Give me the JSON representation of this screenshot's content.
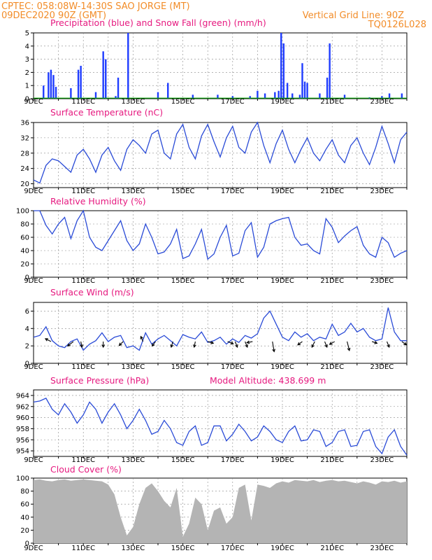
{
  "header": {
    "station": "CPTEC:   058:08W-14:30S  SAO JORGE (MT)",
    "run": "09DEC2020 90Z (GMT)",
    "grid_note": "Vertical Grid Line: 90Z",
    "code": "TQ0126L028"
  },
  "colors": {
    "header": "#f28c28",
    "title": "#e6197f",
    "precip": "#1f3cff",
    "snow": "#00a000",
    "line": "#2a4bd7",
    "wind_arrow": "#000000",
    "cloud": "#b4b4b4",
    "grid": "#888888"
  },
  "x_axis": {
    "labels": [
      "9DEC",
      "11DEC",
      "13DEC",
      "15DEC",
      "17DEC",
      "19DEC",
      "21DEC",
      "23DEC"
    ],
    "day_start": 9,
    "day_end": 24
  },
  "panels": [
    {
      "id": "precip",
      "title": "Precipitation (blue) and Snow Fall (green) (mm/h)",
      "yticks": [
        "0",
        "1",
        "2",
        "3",
        "4",
        "5"
      ]
    },
    {
      "id": "temp",
      "title": "Surface Temperature (nC)",
      "yticks": [
        "20",
        "24",
        "28",
        "32",
        "36"
      ]
    },
    {
      "id": "rh",
      "title": "Relative Humidity (%)",
      "yticks": [
        "0",
        "20",
        "40",
        "60",
        "80",
        "100"
      ]
    },
    {
      "id": "wind",
      "title": "Surface Wind (m/s)",
      "yticks": [
        "0",
        "2",
        "4",
        "6"
      ]
    },
    {
      "id": "press",
      "title": "Surface Pressure (hPa)",
      "extra": "Model Altitude: 438.699 m",
      "yticks": [
        "954",
        "956",
        "958",
        "960",
        "962",
        "964"
      ]
    },
    {
      "id": "cloud",
      "title": "Cloud Cover (%)",
      "yticks": [
        "0",
        "20",
        "40",
        "60",
        "80",
        "100"
      ]
    }
  ],
  "chart_data": [
    {
      "type": "bar",
      "title": "Precipitation (blue) and Snow Fall (green) (mm/h)",
      "ylim": [
        0,
        5
      ],
      "series": [
        {
          "name": "Precipitation",
          "color": "#1f3cff",
          "points": [
            [
              9.4,
              1.0
            ],
            [
              9.6,
              2.0
            ],
            [
              9.7,
              2.2
            ],
            [
              9.8,
              1.8
            ],
            [
              9.9,
              0.9
            ],
            [
              10.5,
              0.8
            ],
            [
              10.8,
              2.2
            ],
            [
              10.9,
              2.5
            ],
            [
              11.5,
              0.5
            ],
            [
              11.8,
              3.6
            ],
            [
              11.9,
              3.0
            ],
            [
              12.3,
              0.2
            ],
            [
              12.4,
              1.6
            ],
            [
              12.8,
              5.0
            ],
            [
              14.0,
              0.5
            ],
            [
              14.4,
              1.2
            ],
            [
              15.4,
              0.3
            ],
            [
              16.4,
              0.3
            ],
            [
              17.0,
              0.2
            ],
            [
              17.7,
              0.2
            ],
            [
              18.0,
              0.6
            ],
            [
              18.3,
              0.4
            ],
            [
              18.7,
              0.5
            ],
            [
              18.85,
              0.6
            ],
            [
              18.95,
              5.0
            ],
            [
              19.05,
              4.2
            ],
            [
              19.2,
              1.2
            ],
            [
              19.4,
              0.4
            ],
            [
              19.7,
              0.3
            ],
            [
              19.8,
              2.7
            ],
            [
              19.9,
              1.3
            ],
            [
              20.0,
              1.2
            ],
            [
              20.5,
              0.4
            ],
            [
              20.8,
              1.6
            ],
            [
              20.9,
              4.2
            ],
            [
              21.5,
              0.3
            ],
            [
              22.5,
              0.1
            ],
            [
              23.0,
              0.2
            ],
            [
              23.3,
              0.4
            ],
            [
              23.8,
              0.4
            ]
          ]
        },
        {
          "name": "Snow Fall",
          "color": "#00a000",
          "points": []
        }
      ]
    },
    {
      "type": "line",
      "title": "Surface Temperature (nC)",
      "ylim": [
        19,
        36
      ],
      "x": [
        9.0,
        9.25,
        9.5,
        9.75,
        10.0,
        10.25,
        10.5,
        10.75,
        11.0,
        11.25,
        11.5,
        11.75,
        12.0,
        12.25,
        12.5,
        12.75,
        13.0,
        13.25,
        13.5,
        13.75,
        14.0,
        14.25,
        14.5,
        14.75,
        15.0,
        15.25,
        15.5,
        15.75,
        16.0,
        16.25,
        16.5,
        16.75,
        17.0,
        17.25,
        17.5,
        17.75,
        18.0,
        18.25,
        18.5,
        18.75,
        19.0,
        19.25,
        19.5,
        19.75,
        20.0,
        20.25,
        20.5,
        20.75,
        21.0,
        21.25,
        21.5,
        21.75,
        22.0,
        22.25,
        22.5,
        22.75,
        23.0,
        23.25,
        23.5,
        23.75,
        24.0
      ],
      "values": [
        21.0,
        20.2,
        24.8,
        26.5,
        26.0,
        24.5,
        23.0,
        27.5,
        29.0,
        26.5,
        23.0,
        27.5,
        29.5,
        26.0,
        23.5,
        29.0,
        31.5,
        30.0,
        28.0,
        33.0,
        34.0,
        28.0,
        26.5,
        33.0,
        35.5,
        29.5,
        26.5,
        32.5,
        35.5,
        31.0,
        27.0,
        32.0,
        35.0,
        29.5,
        28.0,
        33.5,
        36.0,
        30.0,
        25.5,
        30.5,
        34.0,
        29.0,
        25.5,
        29.0,
        32.0,
        28.0,
        26.0,
        29.0,
        31.5,
        27.5,
        25.5,
        30.0,
        32.0,
        28.0,
        25.0,
        29.5,
        35.0,
        30.5,
        25.5,
        31.5,
        33.5
      ]
    },
    {
      "type": "line",
      "title": "Relative Humidity (%)",
      "ylim": [
        0,
        100
      ],
      "x": [
        9.0,
        9.25,
        9.5,
        9.75,
        10.0,
        10.25,
        10.5,
        10.75,
        11.0,
        11.25,
        11.5,
        11.75,
        12.0,
        12.25,
        12.5,
        12.75,
        13.0,
        13.25,
        13.5,
        13.75,
        14.0,
        14.25,
        14.5,
        14.75,
        15.0,
        15.25,
        15.5,
        15.75,
        16.0,
        16.25,
        16.5,
        16.75,
        17.0,
        17.25,
        17.5,
        17.75,
        18.0,
        18.25,
        18.5,
        18.75,
        19.0,
        19.25,
        19.5,
        19.75,
        20.0,
        20.25,
        20.5,
        20.75,
        21.0,
        21.25,
        21.5,
        21.75,
        22.0,
        22.25,
        22.5,
        22.75,
        23.0,
        23.25,
        23.5,
        23.75,
        24.0
      ],
      "values": [
        100,
        100,
        78,
        65,
        80,
        90,
        58,
        85,
        100,
        60,
        45,
        40,
        55,
        70,
        85,
        55,
        40,
        50,
        80,
        60,
        35,
        38,
        50,
        72,
        28,
        32,
        50,
        72,
        27,
        35,
        60,
        78,
        32,
        36,
        70,
        82,
        30,
        45,
        80,
        85,
        88,
        90,
        60,
        48,
        50,
        40,
        35,
        88,
        75,
        52,
        62,
        70,
        76,
        48,
        35,
        30,
        60,
        52,
        30,
        36,
        40
      ]
    },
    {
      "type": "line",
      "title": "Surface Wind (m/s)",
      "ylim": [
        0,
        7
      ],
      "x": [
        9.0,
        9.25,
        9.5,
        9.75,
        10.0,
        10.25,
        10.5,
        10.75,
        11.0,
        11.25,
        11.5,
        11.75,
        12.0,
        12.25,
        12.5,
        12.75,
        13.0,
        13.25,
        13.5,
        13.75,
        14.0,
        14.25,
        14.5,
        14.75,
        15.0,
        15.25,
        15.5,
        15.75,
        16.0,
        16.25,
        16.5,
        16.75,
        17.0,
        17.25,
        17.5,
        17.75,
        18.0,
        18.25,
        18.5,
        18.75,
        19.0,
        19.25,
        19.5,
        19.75,
        20.0,
        20.25,
        20.5,
        20.75,
        21.0,
        21.25,
        21.5,
        21.75,
        22.0,
        22.25,
        22.5,
        22.75,
        23.0,
        23.25,
        23.5,
        23.75,
        24.0
      ],
      "values": [
        3.0,
        3.2,
        4.2,
        2.6,
        2.0,
        1.8,
        2.5,
        2.8,
        1.5,
        2.2,
        2.6,
        3.5,
        2.5,
        3.0,
        3.2,
        1.8,
        2.0,
        1.5,
        3.5,
        2.2,
        2.8,
        3.2,
        2.6,
        2.0,
        3.3,
        3.0,
        2.8,
        3.6,
        2.4,
        2.6,
        3.0,
        2.2,
        2.8,
        2.4,
        3.2,
        2.9,
        3.4,
        5.2,
        6.0,
        4.5,
        3.0,
        2.6,
        3.6,
        3.0,
        3.4,
        2.6,
        3.0,
        2.8,
        4.5,
        3.2,
        3.6,
        4.6,
        3.6,
        4.0,
        3.0,
        2.6,
        2.8,
        6.4,
        3.6,
        2.6,
        2.6
      ],
      "arrows": [
        [
          9.7,
          -1,
          0.5
        ],
        [
          10.6,
          -1,
          -0.8
        ],
        [
          10.9,
          0.2,
          -1
        ],
        [
          11.8,
          0,
          -1
        ],
        [
          12.6,
          -0.7,
          -0.7
        ],
        [
          13.4,
          -0.4,
          0.9
        ],
        [
          13.9,
          -0.6,
          -0.8
        ],
        [
          14.6,
          -0.3,
          -1
        ],
        [
          15.5,
          -0.2,
          -1
        ],
        [
          16.0,
          1,
          -0.3
        ],
        [
          16.8,
          1,
          -0.4
        ],
        [
          17.1,
          0.4,
          -1
        ],
        [
          17.5,
          0.4,
          -1
        ],
        [
          17.8,
          -1,
          -0.2
        ],
        [
          18.6,
          0.3,
          -1.8
        ],
        [
          19.8,
          -0.8,
          -0.6
        ],
        [
          20.3,
          -0.5,
          -1
        ],
        [
          20.7,
          0.4,
          -1
        ],
        [
          21.1,
          -0.9,
          -0.5
        ],
        [
          21.6,
          0.4,
          -1.6
        ],
        [
          22.6,
          0.9,
          -0.3
        ],
        [
          23.2,
          0.4,
          -1
        ],
        [
          23.8,
          0.8,
          -0.6
        ]
      ]
    },
    {
      "type": "line",
      "title": "Surface Pressure (hPa)",
      "ylim": [
        953,
        965
      ],
      "x": [
        9.0,
        9.25,
        9.5,
        9.75,
        10.0,
        10.25,
        10.5,
        10.75,
        11.0,
        11.25,
        11.5,
        11.75,
        12.0,
        12.25,
        12.5,
        12.75,
        13.0,
        13.25,
        13.5,
        13.75,
        14.0,
        14.25,
        14.5,
        14.75,
        15.0,
        15.25,
        15.5,
        15.75,
        16.0,
        16.25,
        16.5,
        16.75,
        17.0,
        17.25,
        17.5,
        17.75,
        18.0,
        18.25,
        18.5,
        18.75,
        19.0,
        19.25,
        19.5,
        19.75,
        20.0,
        20.25,
        20.5,
        20.75,
        21.0,
        21.25,
        21.5,
        21.75,
        22.0,
        22.25,
        22.5,
        22.75,
        23.0,
        23.25,
        23.5,
        23.75,
        24.0
      ],
      "values": [
        962.8,
        963.0,
        963.5,
        961.5,
        960.5,
        962.5,
        961.0,
        959.0,
        960.5,
        962.8,
        961.5,
        959.0,
        961.0,
        962.5,
        960.5,
        958.0,
        959.5,
        961.5,
        959.5,
        957.0,
        957.5,
        959.5,
        958.0,
        955.5,
        955.0,
        957.5,
        958.5,
        955.0,
        955.5,
        958.5,
        958.5,
        955.8,
        957.0,
        958.8,
        957.5,
        955.8,
        956.5,
        958.5,
        957.5,
        956.0,
        955.5,
        957.5,
        958.5,
        955.8,
        956.0,
        957.8,
        957.5,
        954.8,
        955.5,
        957.5,
        957.8,
        954.8,
        955.0,
        957.5,
        957.8,
        954.8,
        953.5,
        956.5,
        957.8,
        954.8,
        953.2
      ]
    },
    {
      "type": "area",
      "title": "Cloud Cover (%)",
      "ylim": [
        0,
        100
      ],
      "x": [
        9.0,
        9.25,
        9.5,
        9.75,
        10.0,
        10.25,
        10.5,
        10.75,
        11.0,
        11.25,
        11.5,
        11.75,
        12.0,
        12.25,
        12.5,
        12.75,
        13.0,
        13.25,
        13.5,
        13.75,
        14.0,
        14.25,
        14.5,
        14.75,
        15.0,
        15.25,
        15.5,
        15.75,
        16.0,
        16.25,
        16.5,
        16.75,
        17.0,
        17.25,
        17.5,
        17.75,
        18.0,
        18.25,
        18.5,
        18.75,
        19.0,
        19.25,
        19.5,
        19.75,
        20.0,
        20.25,
        20.5,
        20.75,
        21.0,
        21.25,
        21.5,
        21.75,
        22.0,
        22.25,
        22.5,
        22.75,
        23.0,
        23.25,
        23.5,
        23.75,
        24.0
      ],
      "values": [
        97,
        98,
        96,
        95,
        97,
        98,
        96,
        97,
        98,
        97,
        96,
        95,
        90,
        75,
        40,
        12,
        25,
        60,
        85,
        92,
        80,
        65,
        55,
        85,
        10,
        30,
        70,
        60,
        20,
        50,
        55,
        30,
        40,
        85,
        90,
        35,
        90,
        88,
        85,
        92,
        95,
        93,
        97,
        96,
        95,
        97,
        94,
        96,
        97,
        95,
        96,
        94,
        92,
        95,
        93,
        90,
        95,
        94,
        96,
        93,
        95
      ]
    }
  ]
}
